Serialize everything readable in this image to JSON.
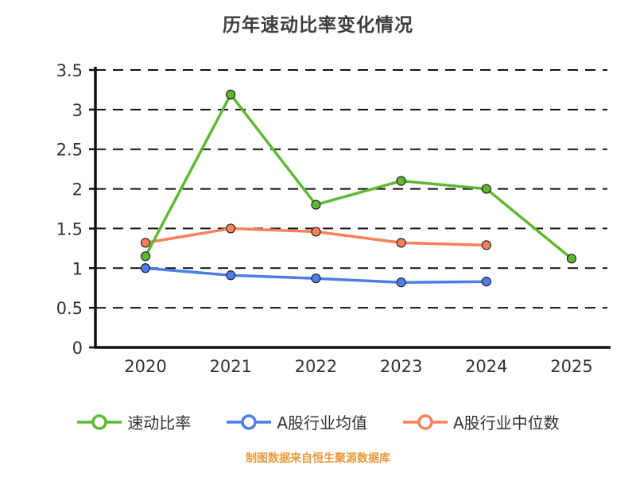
{
  "chart_data": {
    "type": "line",
    "title": "历年速动比率变化情况",
    "categories": [
      "2020",
      "2021",
      "2022",
      "2023",
      "2024",
      "2025"
    ],
    "series": [
      {
        "name": "速动比率",
        "color": "#5fb832",
        "values": [
          1.15,
          3.19,
          1.8,
          2.1,
          2.0,
          1.12
        ]
      },
      {
        "name": "A股行业均值",
        "color": "#4d7de8",
        "values": [
          1.0,
          0.91,
          0.87,
          0.82,
          0.83,
          null
        ]
      },
      {
        "name": "A股行业中位数",
        "color": "#f98057",
        "values": [
          1.32,
          1.5,
          1.46,
          1.32,
          1.29,
          null
        ]
      }
    ],
    "ylim": [
      0,
      3.5
    ],
    "yticks": [
      "0",
      "0.5",
      "1",
      "1.5",
      "2",
      "2.5",
      "3",
      "3.5"
    ],
    "grid": "dashed-horizontal",
    "legend_position": "bottom",
    "axis_color": "#111111",
    "tick_label_color": "#333333"
  },
  "footer": {
    "note": "制图数据来自恒生聚源数据库",
    "color": "#e89b3c"
  }
}
